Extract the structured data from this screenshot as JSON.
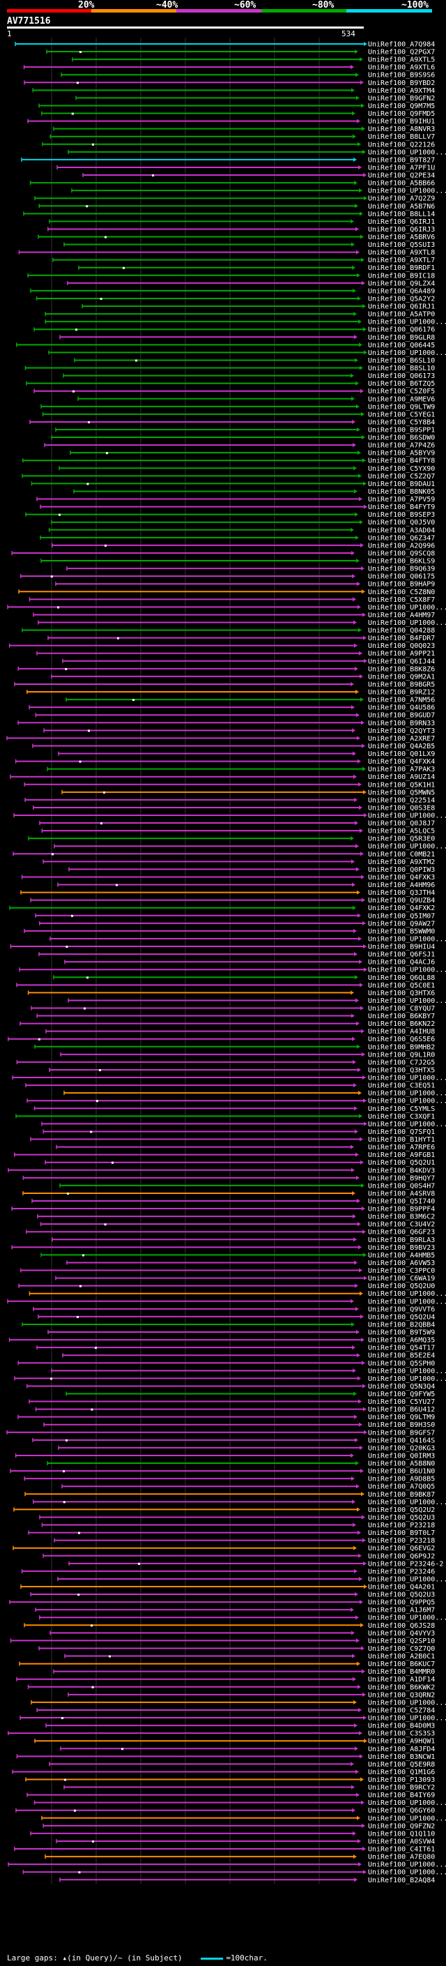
{
  "color_scale": {
    "labels": [
      "20%",
      "~40%",
      "~60%",
      "~80%",
      "~100%"
    ],
    "colors": [
      "#ff0000",
      "#ff8c00",
      "#cc33cc",
      "#00aa00",
      "#00d8e8"
    ]
  },
  "query": {
    "id": "AV771516",
    "start": "1",
    "end": "534"
  },
  "hits": [
    "UniRef100_A7Q984",
    "UniRef100_Q2PGX7",
    "UniRef100_A9XTL5",
    "UniRef100_A9XTL6",
    "UniRef100_B9S9S6",
    "UniRef100_B9YBD2",
    "UniRef100_A9XTM4",
    "UniRef100_B9GFN2",
    "UniRef100_Q9M7M5",
    "UniRef100_Q9FMD5",
    "UniRef100_B9IHU1",
    "UniRef100_A8NVR3",
    "UniRef100_B8LLV7",
    "UniRef100_Q22126",
    "UniRef100_UP1000...",
    "UniRef100_B9T827",
    "UniRef100_A7PF1U",
    "UniRef100_Q2PE34",
    "UniRef100_A5BB66",
    "UniRef100_UP1000...",
    "UniRef100_A7Q2Z9",
    "UniRef100_A5B7N6",
    "UniRef100_B8LL14",
    "UniRef100_Q6IRJ1",
    "UniRef100_Q6IRJ3",
    "UniRef100_A5BRV6",
    "UniRef100_Q5SUI3",
    "UniRef100_A9XTL8",
    "UniRef100_A9XTL7",
    "UniRef100_B9RDF1",
    "UniRef100_B9IC18",
    "UniRef100_Q9LZX4",
    "UniRef100_Q6A489",
    "UniRef100_Q5A2Y2",
    "UniRef100_Q6IRJ1",
    "UniRef100_A5ATP0",
    "UniRef100_UP1000...",
    "UniRef100_Q06176",
    "UniRef100_B9GLR8",
    "UniRef100_Q06445",
    "UniRef100_UP1000...",
    "UniRef100_B6SL10",
    "UniRef100_B8SL10",
    "UniRef100_Q06173",
    "UniRef100_B6TZQ5",
    "UniRef100_C5Z0F5",
    "UniRef100_A9MEV6",
    "UniRef100_Q9LTW9",
    "UniRef100_C5YEG1",
    "UniRef100_C5Y8B4",
    "UniRef100_B9SPP1",
    "UniRef100_B6SDW0",
    "UniRef100_A7P4Z6",
    "UniRef100_A5BYV9",
    "UniRef100_B4FTY8",
    "UniRef100_C5YX90",
    "UniRef100_C5Z2Q7",
    "UniRef100_B9DAU1",
    "UniRef100_B8NK05",
    "UniRef100_A7PV59",
    "UniRef100_B4FYT9",
    "UniRef100_B9SEP3",
    "UniRef100_Q0J5V0",
    "UniRef100_A3AD04",
    "UniRef100_Q6Z347",
    "UniRef100_A2Q996",
    "UniRef100_Q9SCQ8",
    "UniRef100_B6KLS9",
    "UniRef100_B9Q639",
    "UniRef100_Q06175",
    "UniRef100_B9HAP9",
    "UniRef100_C5Z8N0",
    "UniRef100_C5X8F7",
    "UniRef100_UP1000...",
    "UniRef100_A4HM97",
    "UniRef100_UP1000...",
    "UniRef100_Q04288",
    "UniRef100_B4FDR7",
    "UniRef100_Q0Q023",
    "UniRef100_A9PP21",
    "UniRef100_Q6IJ44",
    "UniRef100_B8K8Z6",
    "UniRef100_Q9M2A1",
    "UniRef100_B9BGR5",
    "UniRef100_B9RZ12",
    "UniRef100_A7NM56",
    "UniRef100_Q4U586",
    "UniRef100_B9GUD7",
    "UniRef100_B9RN33",
    "UniRef100_Q2QYT3",
    "UniRef100_A2XRE7",
    "UniRef100_Q4A2B5",
    "UniRef100_Q01LX9",
    "UniRef100_Q4FXK4",
    "UniRef100_A7PAK3",
    "UniRef100_A9UZ14",
    "UniRef100_Q5K1H1",
    "UniRef100_Q5MWN5",
    "UniRef100_Q22514",
    "UniRef100_Q0S3E8",
    "UniRef100_UP1000...",
    "UniRef100_Q0J8J7",
    "UniRef100_A5LQC5",
    "UniRef100_Q5R3E0",
    "UniRef100_UP1000...",
    "UniRef100_C0MB21",
    "UniRef100_A9XTM2",
    "UniRef100_Q0PIW3",
    "UniRef100_Q4FXK3",
    "UniRef100_A4HM96",
    "UniRef100_Q3JTH4",
    "UniRef100_Q9UZB4",
    "UniRef100_Q4FXK2",
    "UniRef100_Q5IM07",
    "UniRef100_Q9AW27",
    "UniRef100_B5WWM0",
    "UniRef100_UP1000...",
    "UniRef100_B9HIU4",
    "UniRef100_Q6FSJ1",
    "UniRef100_Q4ACJ6",
    "UniRef100_UP1000...",
    "UniRef100_Q6QL88",
    "UniRef100_Q5C0E1",
    "UniRef100_Q3HTX6",
    "UniRef100_UP1000...",
    "UniRef100_C8YQU7",
    "UniRef100_B6KBY7",
    "UniRef100_B6KN22",
    "UniRef100_A4IHU8",
    "UniRef100_Q6S5E6",
    "UniRef100_B9MHB2",
    "UniRef100_Q9L1R0",
    "UniRef100_C7J2G5",
    "UniRef100_Q3HTX5",
    "UniRef100_UP1000...",
    "UniRef100_C3EQ51",
    "UniRef100_UP1000...",
    "UniRef100_UP1000...",
    "UniRef100_C5YMLS",
    "UniRef100_C3XQF1",
    "UniRef100_UP1000...",
    "UniRef100_Q7SFQ1",
    "UniRef100_B1HYT1",
    "UniRef100_A7RPE6",
    "UniRef100_A9FGB1",
    "UniRef100_Q5Q2U1",
    "UniRef100_B4KDV3",
    "UniRef100_B9HQY7",
    "UniRef100_Q0S4H7",
    "UniRef100_A4SRV8",
    "UniRef100_Q5I740",
    "UniRef100_B9PPF4",
    "UniRef100_B3M6C2",
    "UniRef100_C3U4V2",
    "UniRef100_Q6GF23",
    "UniRef100_B9RLA3",
    "UniRef100_B9BV23",
    "UniRef100_A4HMB5",
    "UniRef100_A6VW53",
    "UniRef100_C3PPC0",
    "UniRef100_C6WA19",
    "UniRef100_Q5Q2U0",
    "UniRef100_UP1000...",
    "UniRef100_UP1000...",
    "UniRef100_Q9VVT6",
    "UniRef100_Q5Q2U4",
    "UniRef100_B2QBB4",
    "UniRef100_B9T5W9",
    "UniRef100_A6MQ35",
    "UniRef100_Q54T17",
    "UniRef100_B5E2E4",
    "UniRef100_Q5SPH0",
    "UniRef100_UP1000...",
    "UniRef100_UP1000...",
    "UniRef100_Q5N3Q4",
    "UniRef100_Q9FYW5",
    "UniRef100_C5YU27",
    "UniRef100_B6U412",
    "UniRef100_Q9LTM9",
    "UniRef100_B9H3S0",
    "UniRef100_B9GFS7",
    "UniRef100_Q4164S",
    "UniRef100_Q20KG3",
    "UniRef100_Q0IRM3",
    "UniRef100_A5B8N0",
    "UniRef100_B6U1N0",
    "UniRef100_A9D8B5",
    "UniRef100_A7Q0Q5",
    "UniRef100_B9BK87",
    "UniRef100_UP1000...",
    "UniRef100_Q5Q2U2",
    "UniRef100_Q5Q2U3",
    "UniRef100_P23218",
    "UniRef100_B9T0L7",
    "UniRef100_P23218",
    "UniRef100_Q6EVG2",
    "UniRef100_Q6P9J2",
    "UniRef100_P23246-2",
    "UniRef100_P23246",
    "UniRef100_UP1000...",
    "UniRef100_Q4A201",
    "UniRef100_Q5Q2U3",
    "UniRef100_Q9PPQ5",
    "UniRef100_A1J6M7",
    "UniRef100_UP1000...",
    "UniRef100_Q6JS28",
    "UniRef100_Q4VYV3",
    "UniRef100_Q2SP10",
    "UniRef100_C9Z7Q0",
    "UniRef100_A2B0C1",
    "UniRef100_B6KUC7",
    "UniRef100_B4MMR0",
    "UniRef100_A1DF14",
    "UniRef100_B6KWK2",
    "UniRef100_Q3QRN2",
    "UniRef100_UP1000...",
    "UniRef100_C5Z784",
    "UniRef100_UP1000...",
    "UniRef100_B4D0M3",
    "UniRef100_C3S3S3",
    "UniRef100_A9HQW1",
    "UniRef100_A8JFD4",
    "UniRef100_B3NCW1",
    "UniRef100_Q5E9R8",
    "UniRef100_Q1M1G6",
    "UniRef100_P13093",
    "UniRef100_B9RCY2",
    "UniRef100_B4IY69",
    "UniRef100_UP1000...",
    "UniRef100_Q6GY60",
    "UniRef100_UP1000...",
    "UniRef100_Q9FZN2",
    "UniRef100_Q1Q110",
    "UniRef100_A0SVW4",
    "UniRef100_C4IT61",
    "UniRef100_A7EQ80",
    "UniRef100_UP1000...",
    "UniRef100_UP1000...",
    "UniRef100_B2AQ84"
  ],
  "footer": {
    "large_gaps_label": "Large gaps:",
    "in_query": "▴(in Query)",
    "separator": "/",
    "in_subject": "~ (in Subject)",
    "legend_label": "=100char."
  }
}
